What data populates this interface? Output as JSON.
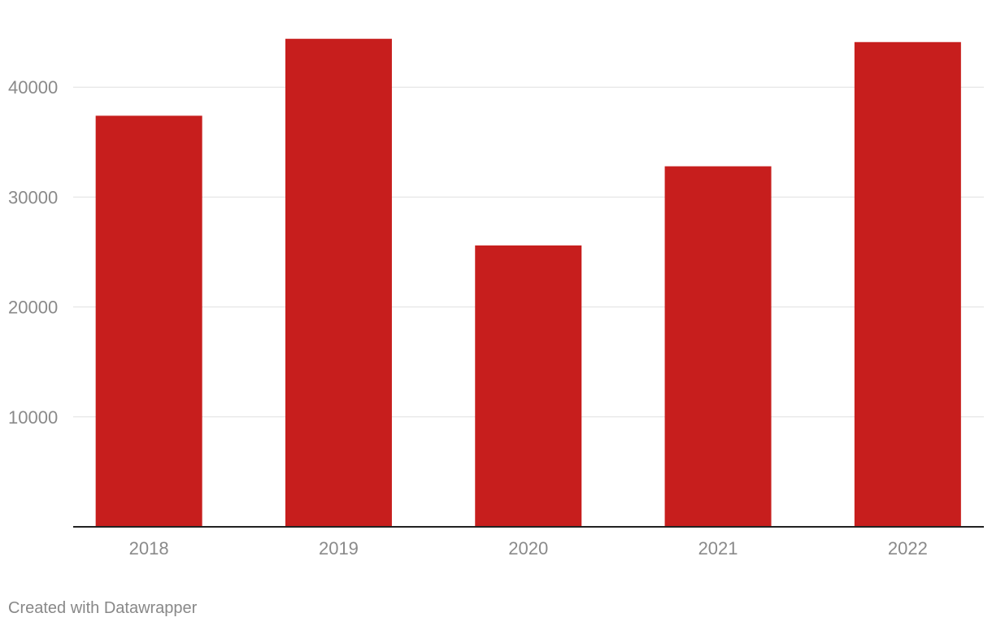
{
  "chart_data": {
    "type": "bar",
    "categories": [
      "2018",
      "2019",
      "2020",
      "2021",
      "2022"
    ],
    "values": [
      37400,
      44400,
      25600,
      32800,
      44100
    ],
    "color": "#c71e1d",
    "ylim": [
      0,
      45000
    ],
    "yticks": [
      10000,
      20000,
      30000,
      40000
    ],
    "grid": true,
    "credit": "Created with Datawrapper"
  }
}
